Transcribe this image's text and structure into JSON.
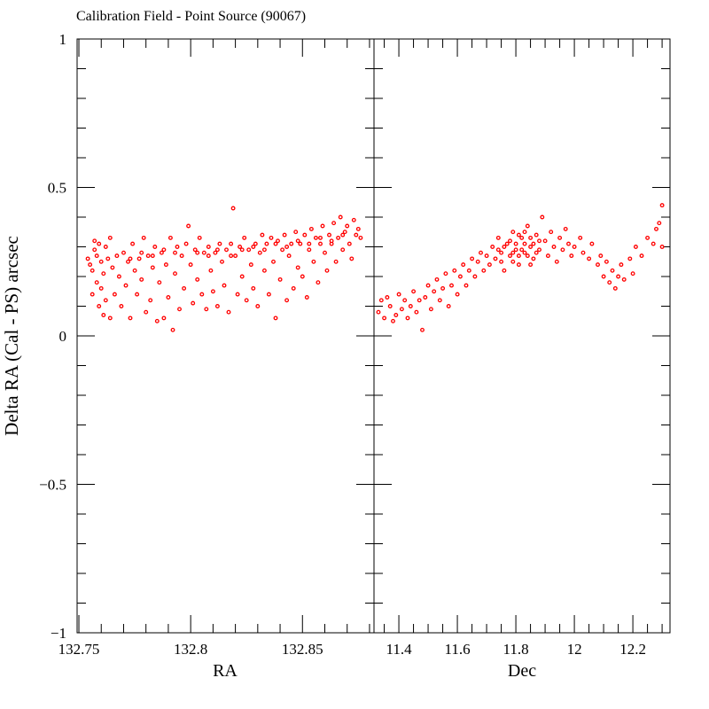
{
  "chart_data": [
    {
      "type": "scatter",
      "title": "Calibration Field - Point Source (90067)",
      "xlabel": "RA",
      "ylabel": "Delta RA (Cal - PS) arcsec",
      "xlim": [
        132.7492,
        132.882
      ],
      "ylim": [
        -1,
        1
      ],
      "x_ticks": [
        132.75,
        132.8,
        132.85
      ],
      "x_tick_labels": [
        "132.75",
        "132.8",
        "132.85"
      ],
      "y_ticks": [
        -1,
        -0.5,
        0,
        0.5,
        1
      ],
      "y_tick_labels": [
        "−1",
        "−0.5",
        "0",
        "0.5",
        "1"
      ],
      "marker_color": "#ff0000",
      "grid": false,
      "points": [
        [
          132.754,
          0.26
        ],
        [
          132.755,
          0.24
        ],
        [
          132.756,
          0.14
        ],
        [
          132.756,
          0.22
        ],
        [
          132.757,
          0.29
        ],
        [
          132.757,
          0.32
        ],
        [
          132.758,
          0.18
        ],
        [
          132.758,
          0.27
        ],
        [
          132.759,
          0.1
        ],
        [
          132.759,
          0.31
        ],
        [
          132.76,
          0.25
        ],
        [
          132.76,
          0.16
        ],
        [
          132.761,
          0.07
        ],
        [
          132.761,
          0.21
        ],
        [
          132.762,
          0.3
        ],
        [
          132.762,
          0.12
        ],
        [
          132.763,
          0.26
        ],
        [
          132.764,
          0.06
        ],
        [
          132.764,
          0.33
        ],
        [
          132.765,
          0.23
        ],
        [
          132.766,
          0.14
        ],
        [
          132.767,
          0.27
        ],
        [
          132.768,
          0.2
        ],
        [
          132.769,
          0.1
        ],
        [
          132.77,
          0.28
        ],
        [
          132.771,
          0.17
        ],
        [
          132.772,
          0.25
        ],
        [
          132.773,
          0.06
        ],
        [
          132.774,
          0.31
        ],
        [
          132.775,
          0.22
        ],
        [
          132.776,
          0.14
        ],
        [
          132.777,
          0.26
        ],
        [
          132.778,
          0.19
        ],
        [
          132.779,
          0.33
        ],
        [
          132.78,
          0.08
        ],
        [
          132.781,
          0.27
        ],
        [
          132.782,
          0.12
        ],
        [
          132.783,
          0.23
        ],
        [
          132.784,
          0.3
        ],
        [
          132.785,
          0.05
        ],
        [
          132.786,
          0.18
        ],
        [
          132.787,
          0.28
        ],
        [
          132.788,
          0.06
        ],
        [
          132.789,
          0.24
        ],
        [
          132.79,
          0.13
        ],
        [
          132.791,
          0.33
        ],
        [
          132.792,
          0.02
        ],
        [
          132.793,
          0.21
        ],
        [
          132.794,
          0.3
        ],
        [
          132.795,
          0.09
        ],
        [
          132.796,
          0.27
        ],
        [
          132.797,
          0.16
        ],
        [
          132.798,
          0.31
        ],
        [
          132.799,
          0.37
        ],
        [
          132.8,
          0.24
        ],
        [
          132.801,
          0.11
        ],
        [
          132.802,
          0.29
        ],
        [
          132.803,
          0.19
        ],
        [
          132.804,
          0.33
        ],
        [
          132.805,
          0.14
        ],
        [
          132.806,
          0.28
        ],
        [
          132.807,
          0.09
        ],
        [
          132.808,
          0.3
        ],
        [
          132.809,
          0.22
        ],
        [
          132.81,
          0.15
        ],
        [
          132.811,
          0.28
        ],
        [
          132.812,
          0.1
        ],
        [
          132.813,
          0.31
        ],
        [
          132.814,
          0.25
        ],
        [
          132.815,
          0.17
        ],
        [
          132.816,
          0.29
        ],
        [
          132.817,
          0.08
        ],
        [
          132.818,
          0.31
        ],
        [
          132.819,
          0.43
        ],
        [
          132.82,
          0.27
        ],
        [
          132.821,
          0.14
        ],
        [
          132.822,
          0.3
        ],
        [
          132.823,
          0.2
        ],
        [
          132.824,
          0.33
        ],
        [
          132.825,
          0.12
        ],
        [
          132.826,
          0.29
        ],
        [
          132.827,
          0.24
        ],
        [
          132.828,
          0.16
        ],
        [
          132.829,
          0.31
        ],
        [
          132.83,
          0.1
        ],
        [
          132.831,
          0.28
        ],
        [
          132.832,
          0.34
        ],
        [
          132.833,
          0.22
        ],
        [
          132.834,
          0.31
        ],
        [
          132.835,
          0.14
        ],
        [
          132.836,
          0.33
        ],
        [
          132.837,
          0.25
        ],
        [
          132.838,
          0.06
        ],
        [
          132.839,
          0.32
        ],
        [
          132.84,
          0.19
        ],
        [
          132.841,
          0.29
        ],
        [
          132.842,
          0.34
        ],
        [
          132.843,
          0.12
        ],
        [
          132.844,
          0.27
        ],
        [
          132.845,
          0.31
        ],
        [
          132.846,
          0.16
        ],
        [
          132.847,
          0.35
        ],
        [
          132.848,
          0.23
        ],
        [
          132.849,
          0.31
        ],
        [
          132.85,
          0.2
        ],
        [
          132.851,
          0.34
        ],
        [
          132.852,
          0.13
        ],
        [
          132.853,
          0.29
        ],
        [
          132.854,
          0.36
        ],
        [
          132.855,
          0.25
        ],
        [
          132.856,
          0.33
        ],
        [
          132.857,
          0.18
        ],
        [
          132.858,
          0.31
        ],
        [
          132.859,
          0.37
        ],
        [
          132.86,
          0.28
        ],
        [
          132.861,
          0.22
        ],
        [
          132.862,
          0.34
        ],
        [
          132.863,
          0.31
        ],
        [
          132.864,
          0.38
        ],
        [
          132.865,
          0.25
        ],
        [
          132.866,
          0.33
        ],
        [
          132.867,
          0.4
        ],
        [
          132.868,
          0.29
        ],
        [
          132.869,
          0.35
        ],
        [
          132.87,
          0.37
        ],
        [
          132.871,
          0.31
        ],
        [
          132.872,
          0.26
        ],
        [
          132.873,
          0.39
        ],
        [
          132.874,
          0.34
        ],
        [
          132.875,
          0.36
        ],
        [
          132.876,
          0.33
        ],
        [
          132.803,
          0.28
        ],
        [
          132.808,
          0.27
        ],
        [
          132.812,
          0.29
        ],
        [
          132.818,
          0.27
        ],
        [
          132.823,
          0.29
        ],
        [
          132.828,
          0.3
        ],
        [
          132.833,
          0.29
        ],
        [
          132.838,
          0.31
        ],
        [
          132.843,
          0.3
        ],
        [
          132.848,
          0.32
        ],
        [
          132.853,
          0.31
        ],
        [
          132.858,
          0.33
        ],
        [
          132.863,
          0.32
        ],
        [
          132.868,
          0.34
        ],
        [
          132.773,
          0.26
        ],
        [
          132.778,
          0.28
        ],
        [
          132.783,
          0.27
        ],
        [
          132.788,
          0.29
        ],
        [
          132.793,
          0.28
        ]
      ]
    },
    {
      "type": "scatter",
      "xlabel": "Dec",
      "xlim": [
        11.315,
        12.327
      ],
      "ylim": [
        -1,
        1
      ],
      "x_ticks": [
        11.4,
        11.6,
        11.8,
        12,
        12.2
      ],
      "x_tick_labels": [
        "11.4",
        "11.6",
        "11.8",
        "12",
        "12.2"
      ],
      "marker_color": "#ff0000",
      "grid": false,
      "points": [
        [
          11.33,
          0.08
        ],
        [
          11.34,
          0.12
        ],
        [
          11.35,
          0.06
        ],
        [
          11.36,
          0.13
        ],
        [
          11.37,
          0.1
        ],
        [
          11.38,
          0.05
        ],
        [
          11.39,
          0.07
        ],
        [
          11.4,
          0.14
        ],
        [
          11.41,
          0.09
        ],
        [
          11.42,
          0.12
        ],
        [
          11.43,
          0.06
        ],
        [
          11.44,
          0.1
        ],
        [
          11.45,
          0.15
        ],
        [
          11.46,
          0.08
        ],
        [
          11.47,
          0.12
        ],
        [
          11.48,
          0.02
        ],
        [
          11.49,
          0.13
        ],
        [
          11.5,
          0.17
        ],
        [
          11.51,
          0.09
        ],
        [
          11.52,
          0.15
        ],
        [
          11.53,
          0.19
        ],
        [
          11.54,
          0.12
        ],
        [
          11.55,
          0.16
        ],
        [
          11.56,
          0.21
        ],
        [
          11.57,
          0.1
        ],
        [
          11.58,
          0.17
        ],
        [
          11.59,
          0.22
        ],
        [
          11.6,
          0.14
        ],
        [
          11.61,
          0.2
        ],
        [
          11.62,
          0.24
        ],
        [
          11.63,
          0.17
        ],
        [
          11.64,
          0.22
        ],
        [
          11.65,
          0.26
        ],
        [
          11.66,
          0.2
        ],
        [
          11.67,
          0.25
        ],
        [
          11.68,
          0.28
        ],
        [
          11.69,
          0.22
        ],
        [
          11.7,
          0.27
        ],
        [
          11.71,
          0.24
        ],
        [
          11.72,
          0.3
        ],
        [
          11.73,
          0.26
        ],
        [
          11.74,
          0.33
        ],
        [
          11.75,
          0.28
        ],
        [
          11.76,
          0.22
        ],
        [
          11.77,
          0.31
        ],
        [
          11.78,
          0.27
        ],
        [
          11.79,
          0.35
        ],
        [
          11.8,
          0.29
        ],
        [
          11.81,
          0.24
        ],
        [
          11.82,
          0.33
        ],
        [
          11.83,
          0.28
        ],
        [
          11.84,
          0.37
        ],
        [
          11.85,
          0.3
        ],
        [
          11.86,
          0.26
        ],
        [
          11.87,
          0.34
        ],
        [
          11.88,
          0.29
        ],
        [
          11.89,
          0.4
        ],
        [
          11.9,
          0.32
        ],
        [
          11.91,
          0.27
        ],
        [
          11.92,
          0.35
        ],
        [
          11.93,
          0.3
        ],
        [
          11.94,
          0.25
        ],
        [
          11.95,
          0.33
        ],
        [
          11.96,
          0.29
        ],
        [
          11.97,
          0.36
        ],
        [
          11.98,
          0.31
        ],
        [
          11.99,
          0.27
        ],
        [
          12.0,
          0.3
        ],
        [
          12.02,
          0.33
        ],
        [
          12.03,
          0.28
        ],
        [
          12.05,
          0.26
        ],
        [
          12.06,
          0.31
        ],
        [
          12.08,
          0.24
        ],
        [
          12.09,
          0.27
        ],
        [
          12.1,
          0.2
        ],
        [
          12.11,
          0.25
        ],
        [
          12.12,
          0.18
        ],
        [
          12.13,
          0.22
        ],
        [
          12.14,
          0.16
        ],
        [
          12.15,
          0.2
        ],
        [
          12.16,
          0.24
        ],
        [
          12.17,
          0.19
        ],
        [
          12.19,
          0.26
        ],
        [
          12.2,
          0.21
        ],
        [
          12.21,
          0.3
        ],
        [
          12.23,
          0.27
        ],
        [
          12.25,
          0.33
        ],
        [
          12.27,
          0.31
        ],
        [
          12.28,
          0.36
        ],
        [
          12.29,
          0.38
        ],
        [
          12.3,
          0.44
        ],
        [
          12.3,
          0.3
        ],
        [
          11.76,
          0.3
        ],
        [
          11.78,
          0.32
        ],
        [
          11.79,
          0.28
        ],
        [
          11.8,
          0.31
        ],
        [
          11.81,
          0.34
        ],
        [
          11.82,
          0.29
        ],
        [
          11.83,
          0.31
        ],
        [
          11.84,
          0.27
        ],
        [
          11.85,
          0.33
        ],
        [
          11.86,
          0.31
        ],
        [
          11.87,
          0.28
        ],
        [
          11.88,
          0.32
        ],
        [
          11.79,
          0.25
        ],
        [
          11.81,
          0.27
        ],
        [
          11.83,
          0.35
        ],
        [
          11.85,
          0.24
        ],
        [
          11.75,
          0.25
        ],
        [
          11.74,
          0.29
        ]
      ]
    }
  ]
}
